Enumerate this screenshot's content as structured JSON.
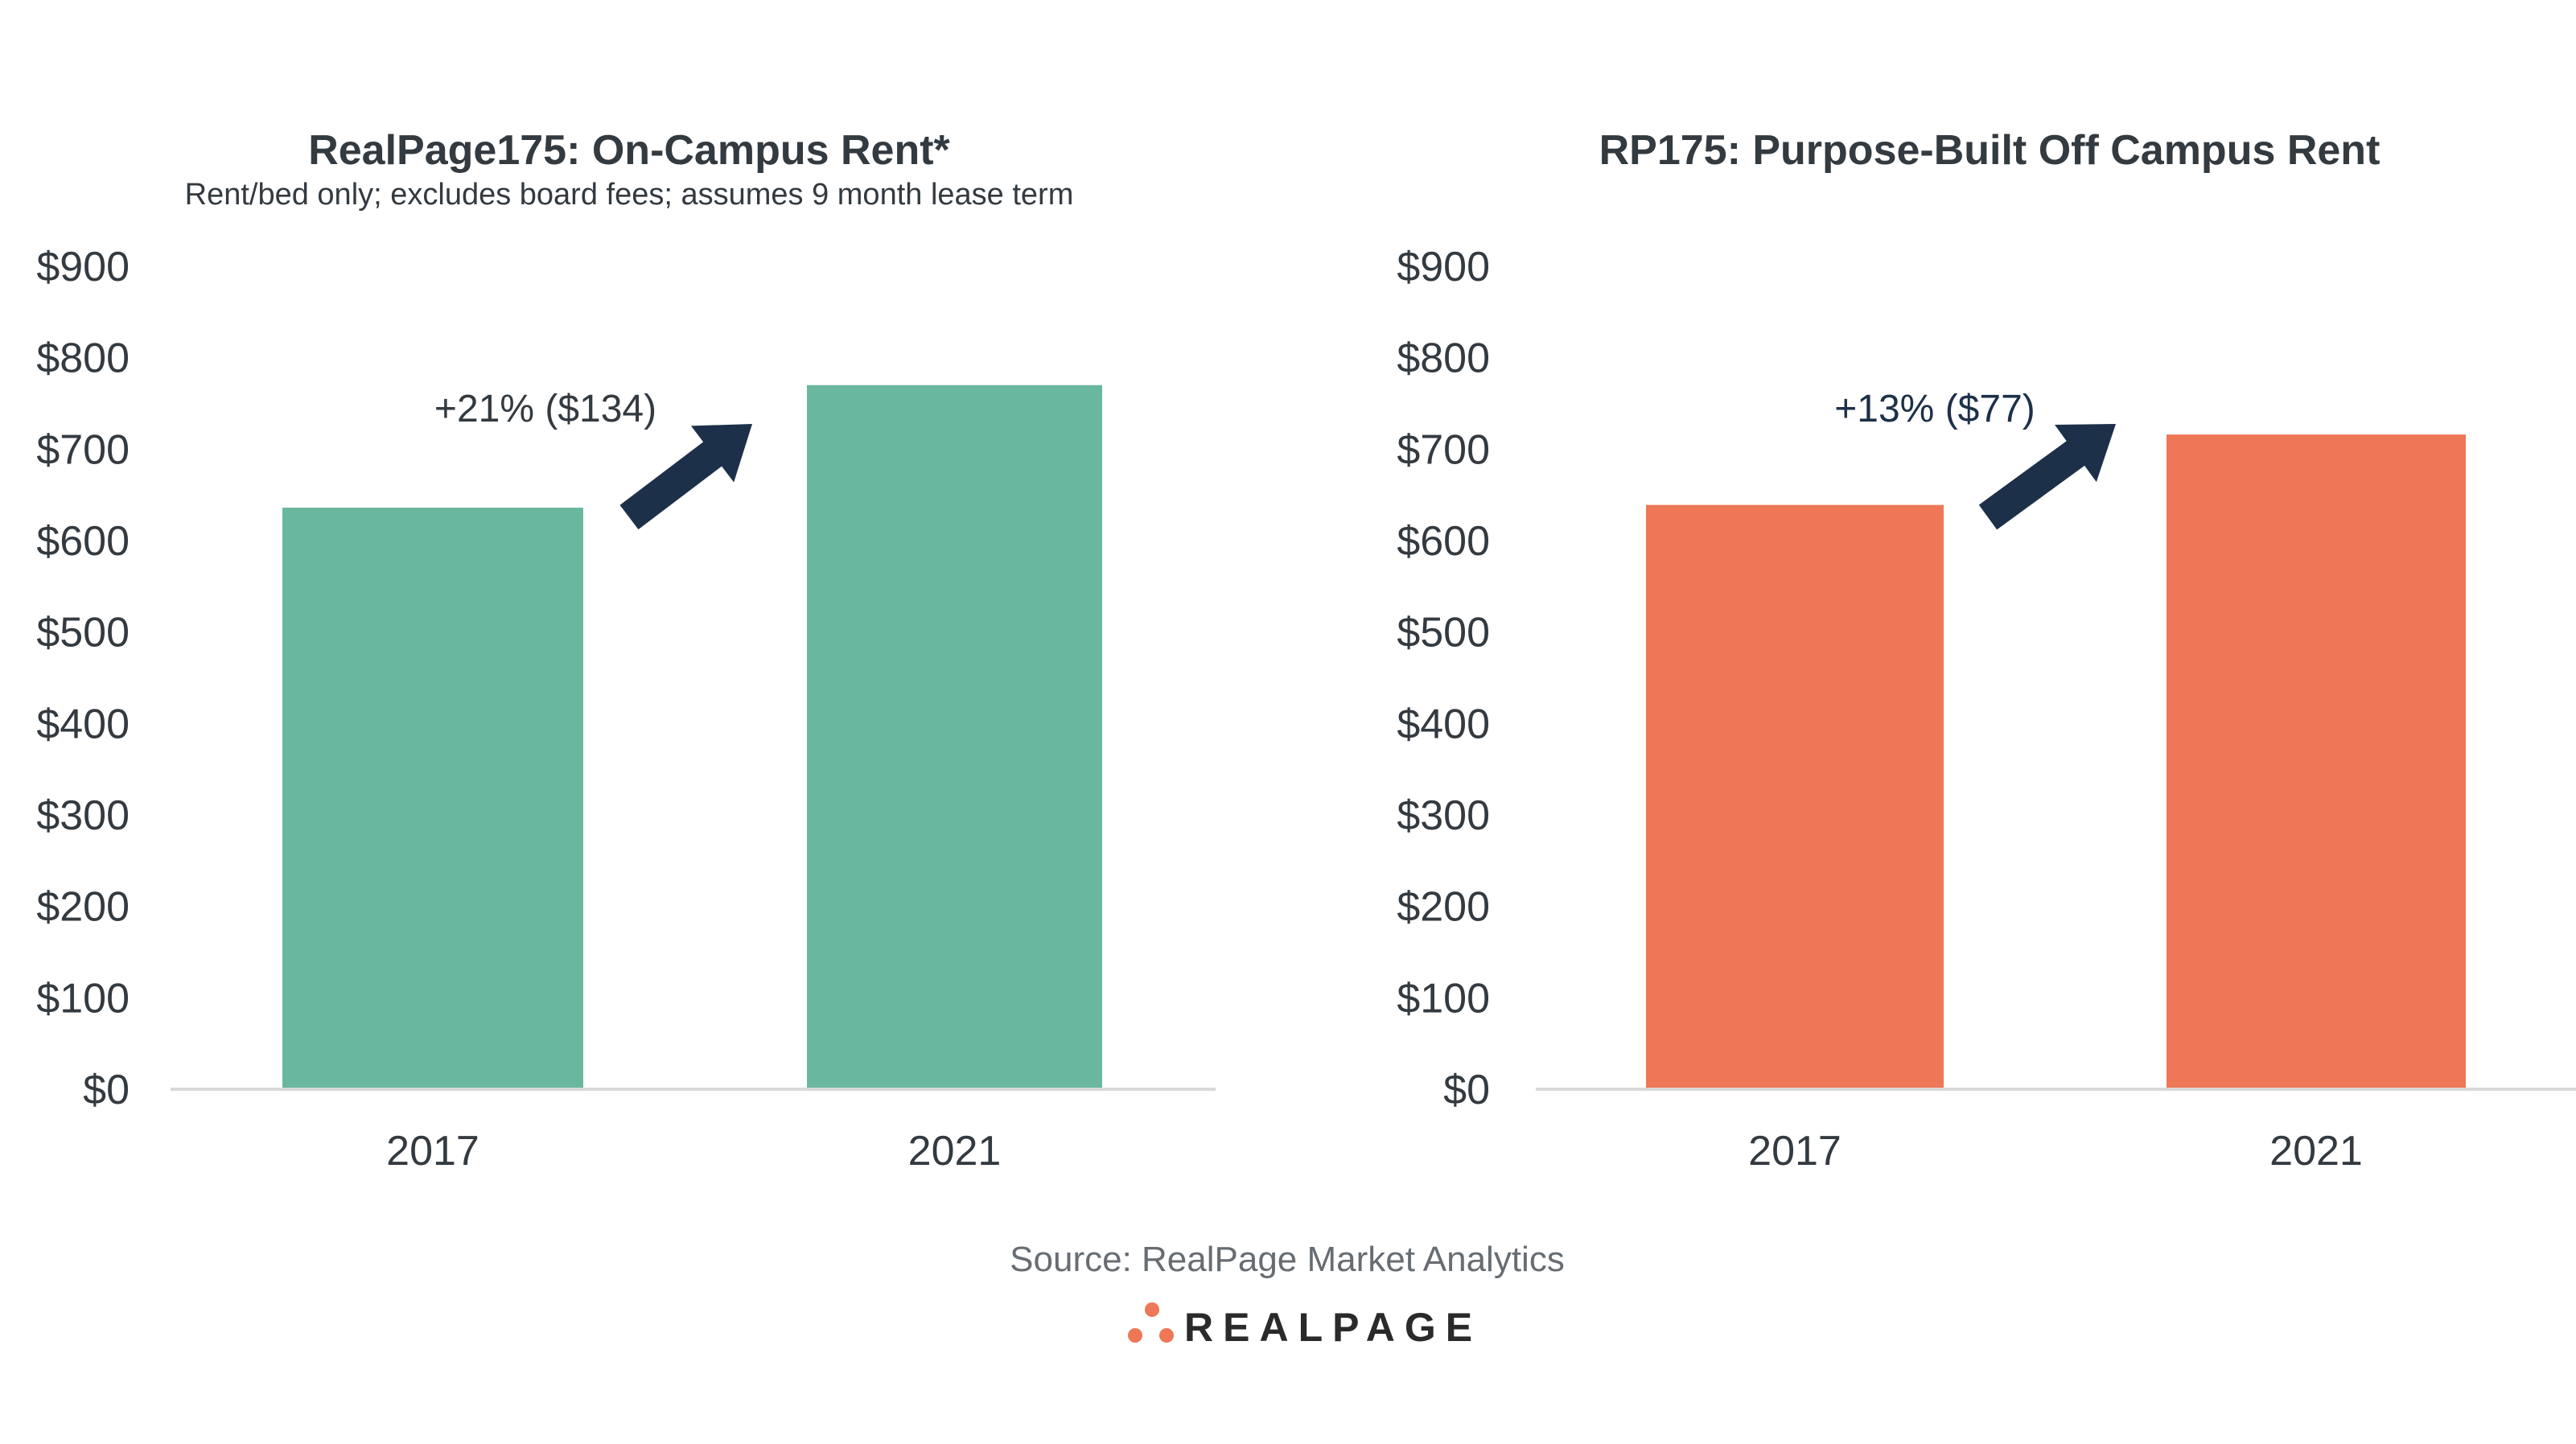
{
  "chart_data": [
    {
      "type": "bar",
      "title": "RealPage175: On-Campus Rent*",
      "subtitle": "Rent/bed only; excludes board fees; assumes 9 month lease term",
      "categories": [
        "2017",
        "2021"
      ],
      "values": [
        636,
        770
      ],
      "ylim": [
        0,
        900
      ],
      "yticks": [
        "$0",
        "$100",
        "$200",
        "$300",
        "$400",
        "$500",
        "$600",
        "$700",
        "$800",
        "$900"
      ],
      "color": "#69b79f",
      "annotation": "+21% ($134)",
      "annotation_color": "#333a40",
      "grid": false
    },
    {
      "type": "bar",
      "title": "RP175: Purpose-Built Off Campus Rent",
      "categories": [
        "2017",
        "2021"
      ],
      "values": [
        639,
        716
      ],
      "ylim": [
        0,
        900
      ],
      "yticks": [
        "$0",
        "$100",
        "$200",
        "$300",
        "$400",
        "$500",
        "$600",
        "$700",
        "$800",
        "$900"
      ],
      "color": "#ed7756",
      "annotation": "+13% ($77)",
      "annotation_color": "#1d3049",
      "grid": false
    }
  ],
  "arrow_color": "#1d3049",
  "source": "Source: RealPage Market Analytics",
  "logo": {
    "text": "REALPAGE",
    "dot_color": "#ed7756"
  }
}
